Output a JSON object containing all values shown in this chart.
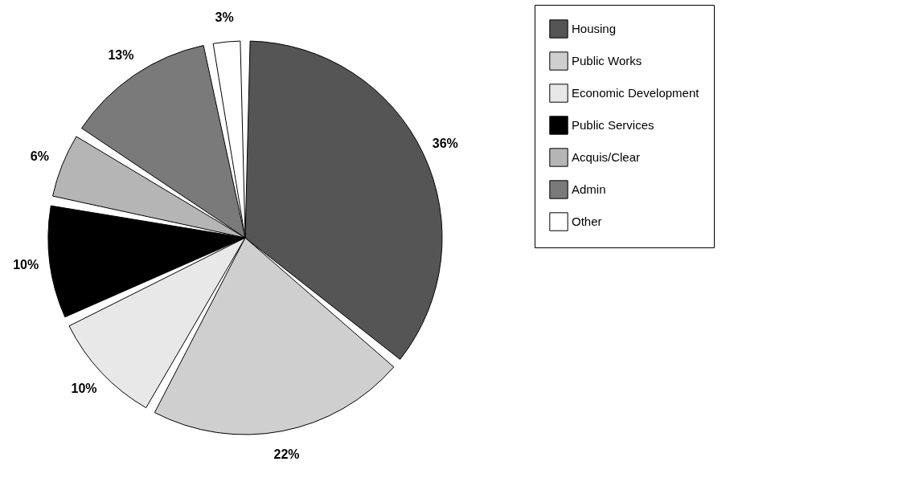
{
  "chart_data": {
    "type": "pie",
    "categories": [
      "Housing",
      "Public Works",
      "Economic Development",
      "Public Services",
      "Acquis/Clear",
      "Admin",
      "Other"
    ],
    "values": [
      36,
      22,
      10,
      10,
      6,
      13,
      3
    ],
    "value_labels": [
      "36%",
      "22%",
      "10%",
      "10%",
      "6%",
      "13%",
      "3%"
    ],
    "colors": [
      "#555555",
      "#cfcfcf",
      "#e8e8e8",
      "#000000",
      "#b5b5b5",
      "#7a7a7a",
      "#ffffff"
    ],
    "legend": "right"
  }
}
